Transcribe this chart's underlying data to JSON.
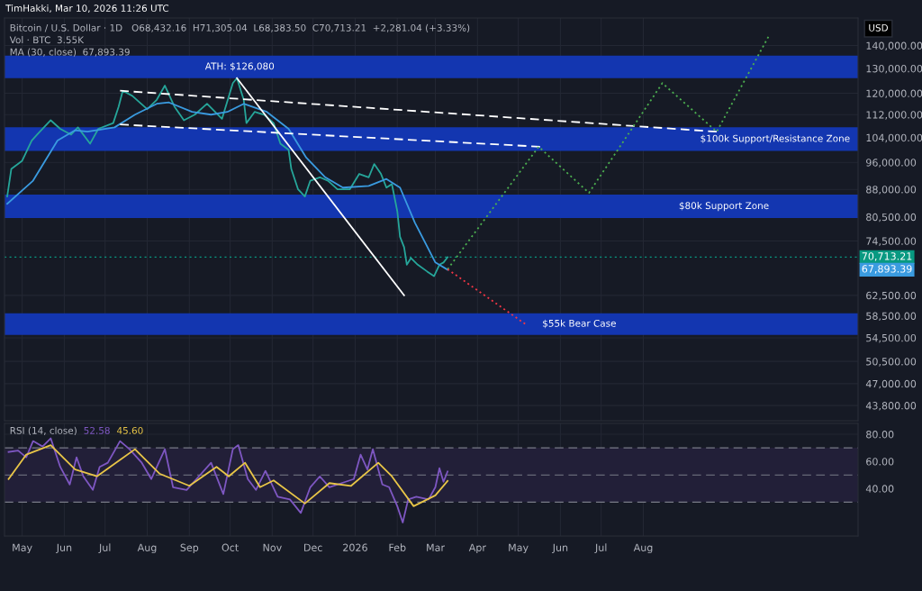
{
  "chart_data": [
    {
      "type": "line",
      "title": "TimHakki, Mar 10, 2026 11:26 UTC",
      "subtitle": "Bitcoin / U.S. Dollar · 1D   O68,432.16  H71,305.04  L68,383.50  C70,713.21  +2,281.04 (+3.33%)",
      "ylabel": "USD",
      "annotations": [
        "Vol · BTC  3.55K",
        "MA (30, close)  67,893.39",
        "67,893.39"
      ],
      "log": true,
      "grid": true,
      "tick_labels": "y",
      "marker": "none",
      "xlim": [
        "2025-04-18",
        "2027-01-06"
      ],
      "xticks": [
        {
          "value": "2025-05-01",
          "label": null
        },
        {
          "value": "2025-06-01",
          "label": null
        },
        {
          "value": "2025-07-01",
          "label": null
        },
        {
          "value": "2025-08-01",
          "label": null
        },
        {
          "value": "2025-09-01",
          "label": null
        },
        {
          "value": "2025-10-01",
          "label": null
        },
        {
          "value": "2025-11-01",
          "label": null
        },
        {
          "value": "2025-12-01",
          "label": null
        },
        {
          "value": "2026-01-01",
          "label": null
        },
        {
          "value": "2026-02-01",
          "label": null
        },
        {
          "value": "2026-03-01",
          "label": null
        },
        {
          "value": "2026-04-01",
          "label": null
        },
        {
          "value": "2026-05-01",
          "label": null
        },
        {
          "value": "2026-06-01",
          "label": null
        },
        {
          "value": "2026-07-01",
          "label": null
        },
        {
          "value": "2026-08-01",
          "label": null
        }
      ],
      "ylim": [
        41700,
        153000
      ],
      "yticks": [
        {
          "value": 43800,
          "label": "43,800.00"
        },
        {
          "value": 47000,
          "label": "47,000.00"
        },
        {
          "value": 50500,
          "label": "50,500.00"
        },
        {
          "value": 54500,
          "label": "54,500.00"
        },
        {
          "value": 58500,
          "label": "58,500.00"
        },
        {
          "value": 62500,
          "label": "62,500.00"
        },
        {
          "value": 74500,
          "label": "74,500.00"
        },
        {
          "value": 80500,
          "label": "80,500.00"
        },
        {
          "value": 88000,
          "label": "88,000.00"
        },
        {
          "value": 96000,
          "label": "96,000.00"
        },
        {
          "value": 104000,
          "label": "104,000.00"
        },
        {
          "value": 112000,
          "label": "112,000.00"
        },
        {
          "value": 120000,
          "label": "120,000.00"
        },
        {
          "value": 130000,
          "label": "130,000.00"
        },
        {
          "value": 140000,
          "label": "140,000.00"
        }
      ],
      "bands": [
        {
          "axis": "y",
          "from": 126000,
          "to": 135500,
          "label": "ATH: $126,080",
          "color": "#1336b0"
        },
        {
          "axis": "y",
          "from": 99600,
          "to": 107500,
          "label": "$100k Support/Resistance Zone",
          "color": "#1336b0"
        },
        {
          "axis": "y",
          "from": 80200,
          "to": 86500,
          "label": "$80k Support Zone",
          "color": "#1336b0"
        },
        {
          "axis": "y",
          "from": 55000,
          "to": 59000,
          "label": "$55k Bear Case",
          "color": "#1336b0"
        }
      ],
      "ref_lines": [
        {
          "axis": "y",
          "value": 70713.21,
          "label": "70,713.21",
          "color": "#089981",
          "line_style": "dotted"
        }
      ],
      "series": [
        {
          "color": "#26a69a",
          "line_style": "solid",
          "x": [
            "2025-04-20",
            "2025-04-23",
            "2025-05-01",
            "2025-05-08",
            "2025-05-12",
            "2025-05-22",
            "2025-05-29",
            "2025-06-06",
            "2025-06-11",
            "2025-06-20",
            "2025-06-26",
            "2025-07-07",
            "2025-07-11",
            "2025-07-14",
            "2025-07-21",
            "2025-08-01",
            "2025-08-08",
            "2025-08-14",
            "2025-08-21",
            "2025-08-28",
            "2025-09-05",
            "2025-09-14",
            "2025-09-25",
            "2025-10-03",
            "2025-10-06",
            "2025-10-11",
            "2025-10-13",
            "2025-10-19",
            "2025-10-26",
            "2025-11-02",
            "2025-11-07",
            "2025-11-13",
            "2025-11-15",
            "2025-11-20",
            "2025-11-25",
            "2025-11-29",
            "2025-12-06",
            "2025-12-12",
            "2025-12-19",
            "2025-12-28",
            "2026-01-04",
            "2026-01-11",
            "2026-01-15",
            "2026-01-20",
            "2026-01-24",
            "2026-01-28",
            "2026-02-01",
            "2026-02-03",
            "2026-02-06",
            "2026-02-08",
            "2026-02-11",
            "2026-02-16",
            "2026-02-23",
            "2026-02-28",
            "2026-03-04",
            "2026-03-07",
            "2026-03-10"
          ],
          "values": [
            86000,
            94000,
            96500,
            103000,
            105000,
            110000,
            107000,
            105000,
            107500,
            102000,
            107000,
            109000,
            115000,
            121000,
            119000,
            114000,
            117500,
            123000,
            115000,
            110000,
            112000,
            116000,
            110500,
            124000,
            126000,
            117500,
            109000,
            113000,
            112000,
            109000,
            102000,
            100000,
            94000,
            88000,
            86000,
            90500,
            91500,
            90500,
            88000,
            88000,
            92500,
            91500,
            95500,
            92500,
            88500,
            89500,
            82000,
            75500,
            73000,
            69000,
            70500,
            69000,
            67500,
            66500,
            69000,
            69500,
            70713.21
          ]
        },
        {
          "color": "#3a9be0",
          "line_style": "solid",
          "x": [
            "2025-04-20",
            "2025-05-09",
            "2025-05-27",
            "2025-06-09",
            "2025-06-18",
            "2025-07-08",
            "2025-07-23",
            "2025-08-08",
            "2025-08-17",
            "2025-09-03",
            "2025-09-17",
            "2025-09-29",
            "2025-10-11",
            "2025-10-28",
            "2025-11-13",
            "2025-11-26",
            "2025-12-10",
            "2025-12-23",
            "2026-01-11",
            "2026-01-24",
            "2026-02-03",
            "2026-02-14",
            "2026-03-01",
            "2026-03-10"
          ],
          "values": [
            84000,
            90500,
            103000,
            106500,
            106000,
            107500,
            112000,
            116000,
            116500,
            113000,
            112000,
            113000,
            116000,
            113000,
            107000,
            97500,
            91500,
            88500,
            89000,
            91000,
            88500,
            79000,
            69500,
            67893.39
          ]
        },
        {
          "color": "#ffffff",
          "line_style": "solid",
          "x": [
            "2025-10-06",
            "2026-02-06"
          ],
          "values": [
            126000,
            62500
          ]
        },
        {
          "color": "#ffffff",
          "line_style": "dashed",
          "x": [
            "2025-07-12",
            "2026-09-24"
          ],
          "values": [
            121000,
            106000
          ]
        },
        {
          "color": "#ffffff",
          "line_style": "dashed",
          "x": [
            "2025-07-12",
            "2026-05-17"
          ],
          "values": [
            108500,
            101000
          ]
        },
        {
          "color": "#4caf50",
          "line_style": "dotted",
          "x": [
            "2026-03-10",
            "2026-05-16",
            "2026-06-22",
            "2026-08-15",
            "2026-09-24",
            "2026-11-01"
          ],
          "values": [
            68000,
            101000,
            87000,
            124000,
            106000,
            144000
          ]
        },
        {
          "color": "#f23645",
          "line_style": "dotted",
          "x": [
            "2026-03-10",
            "2026-05-06"
          ],
          "values": [
            68000,
            57000
          ]
        }
      ]
    },
    {
      "type": "line",
      "title": "RSI (14, close)",
      "annotations": [
        "52.58",
        "45.60"
      ],
      "grid": true,
      "marker": "none",
      "xlim": [
        "2025-04-18",
        "2027-01-06"
      ],
      "xticks": [
        {
          "value": "2025-05-01",
          "label": "May"
        },
        {
          "value": "2025-06-01",
          "label": "Jun"
        },
        {
          "value": "2025-07-01",
          "label": "Jul"
        },
        {
          "value": "2025-08-01",
          "label": "Aug"
        },
        {
          "value": "2025-09-01",
          "label": "Sep"
        },
        {
          "value": "2025-10-01",
          "label": "Oct"
        },
        {
          "value": "2025-11-01",
          "label": "Nov"
        },
        {
          "value": "2025-12-01",
          "label": "Dec"
        },
        {
          "value": "2026-01-01",
          "label": "2026"
        },
        {
          "value": "2026-02-01",
          "label": "Feb"
        },
        {
          "value": "2026-03-01",
          "label": "Mar"
        },
        {
          "value": "2026-04-01",
          "label": "Apr"
        },
        {
          "value": "2026-05-01",
          "label": "May"
        },
        {
          "value": "2026-06-01",
          "label": "Jun"
        },
        {
          "value": "2026-07-01",
          "label": "Jul"
        },
        {
          "value": "2026-08-01",
          "label": "Aug"
        }
      ],
      "ylim": [
        5,
        88
      ],
      "yticks": [
        {
          "value": 40,
          "label": "40.00"
        },
        {
          "value": 60,
          "label": "60.00"
        },
        {
          "value": 80,
          "label": "80.00"
        }
      ],
      "bands": [
        {
          "axis": "y",
          "from": 30,
          "to": 70,
          "color": "#221f38"
        }
      ],
      "ref_lines": [
        {
          "axis": "y",
          "value": 70,
          "color": "#787b86",
          "line_style": "dashed"
        },
        {
          "axis": "y",
          "value": 50,
          "color": "#787b86",
          "line_style": "dashed"
        },
        {
          "axis": "y",
          "value": 30,
          "color": "#787b86",
          "line_style": "dashed"
        }
      ],
      "series": [
        {
          "color": "#7e57c2",
          "line_style": "solid",
          "x": [
            "2025-04-21",
            "2025-04-28",
            "2025-05-04",
            "2025-05-09",
            "2025-05-16",
            "2025-05-22",
            "2025-05-29",
            "2025-06-05",
            "2025-06-10",
            "2025-06-15",
            "2025-06-22",
            "2025-06-27",
            "2025-07-03",
            "2025-07-12",
            "2025-07-19",
            "2025-07-28",
            "2025-08-04",
            "2025-08-14",
            "2025-08-20",
            "2025-08-30",
            "2025-09-08",
            "2025-09-17",
            "2025-09-26",
            "2025-10-03",
            "2025-10-07",
            "2025-10-14",
            "2025-10-20",
            "2025-10-27",
            "2025-11-05",
            "2025-11-14",
            "2025-11-22",
            "2025-11-29",
            "2025-12-06",
            "2025-12-13",
            "2025-12-22",
            "2025-12-31",
            "2026-01-05",
            "2026-01-10",
            "2026-01-14",
            "2026-01-21",
            "2026-01-26",
            "2026-02-01",
            "2026-02-05",
            "2026-02-09",
            "2026-02-15",
            "2026-02-24",
            "2026-03-01",
            "2026-03-04",
            "2026-03-07",
            "2026-03-10"
          ],
          "values": [
            67,
            68,
            63,
            75,
            71,
            77,
            56,
            43,
            63,
            49,
            39,
            56,
            59,
            75,
            69,
            59,
            47,
            69,
            41,
            39,
            49,
            59,
            36,
            69,
            72,
            47,
            39,
            53,
            34,
            32,
            22,
            41,
            49,
            41,
            44,
            47,
            65,
            54,
            69,
            43,
            41,
            27,
            15,
            32,
            34,
            32,
            41,
            55,
            45,
            52.58
          ]
        },
        {
          "color": "#e8c547",
          "line_style": "solid",
          "x": [
            "2025-04-21",
            "2025-05-04",
            "2025-05-22",
            "2025-06-09",
            "2025-06-25",
            "2025-07-23",
            "2025-08-10",
            "2025-09-01",
            "2025-09-21",
            "2025-09-30",
            "2025-10-12",
            "2025-10-23",
            "2025-11-02",
            "2025-11-25",
            "2025-12-13",
            "2025-12-29",
            "2026-01-18",
            "2026-01-28",
            "2026-02-13",
            "2026-03-01",
            "2026-03-10"
          ],
          "values": [
            47,
            65,
            72,
            54,
            49,
            69,
            51,
            42,
            56,
            49,
            59,
            41,
            46,
            29,
            44,
            42,
            59,
            49,
            27,
            35,
            45.6
          ]
        }
      ]
    }
  ]
}
